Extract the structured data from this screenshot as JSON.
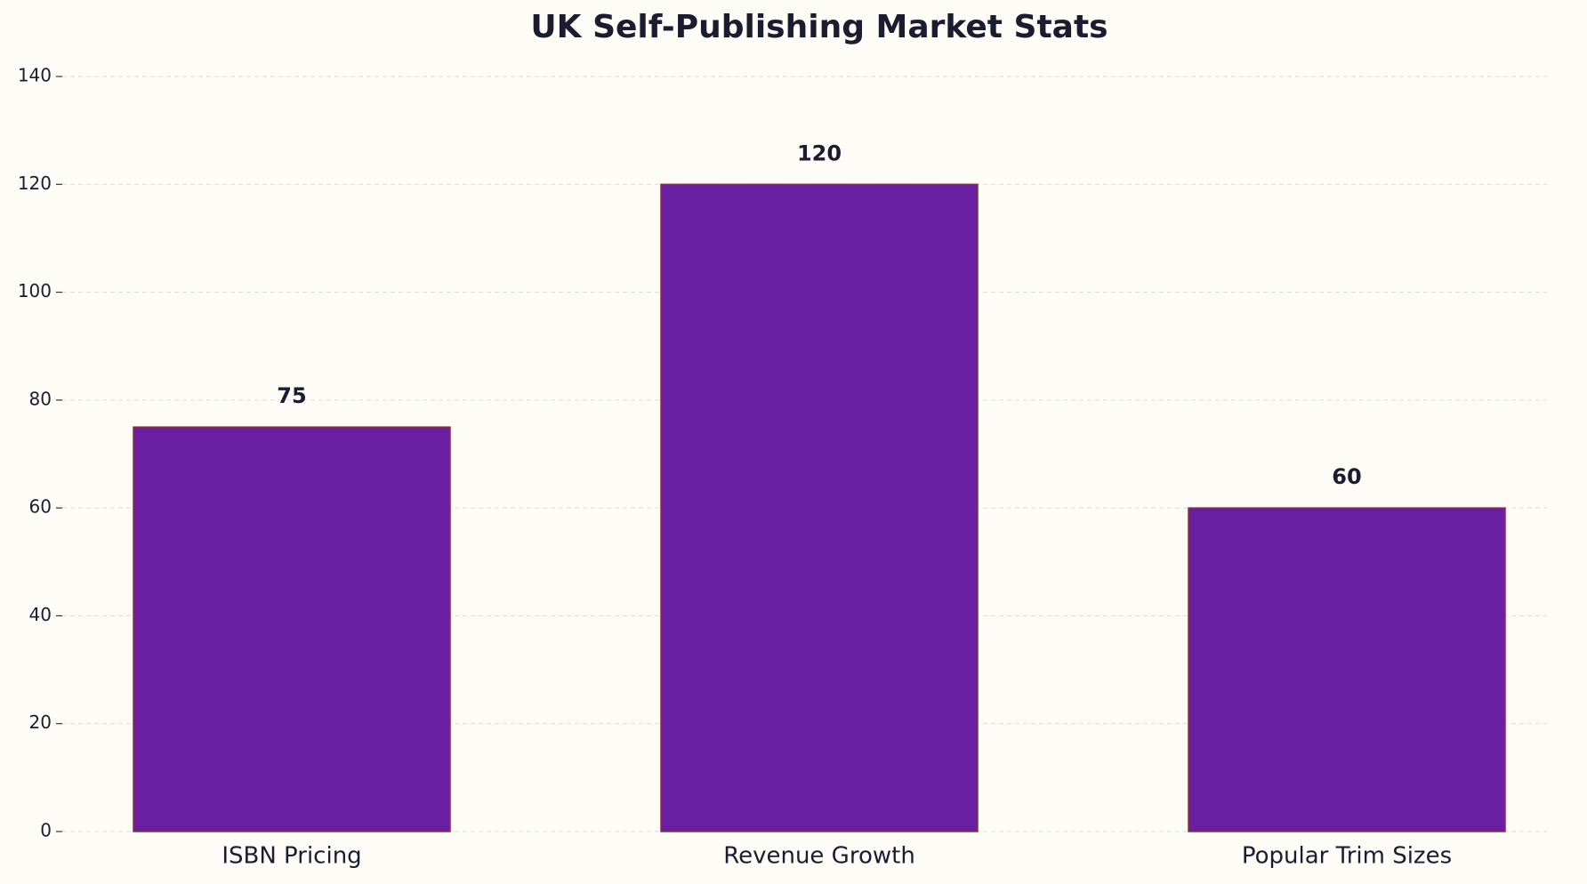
{
  "chart_data": {
    "type": "bar",
    "title": "UK Self-Publishing Market Stats",
    "categories": [
      "ISBN Pricing",
      "Revenue Growth",
      "Popular Trim Sizes"
    ],
    "values": [
      75,
      120,
      60
    ],
    "color": "#6a1fa3",
    "edgecolor": "#8b2d3c",
    "ylim": [
      0,
      140
    ],
    "yticks": [
      0,
      20,
      40,
      60,
      80,
      100,
      120,
      140
    ],
    "grid": true
  }
}
